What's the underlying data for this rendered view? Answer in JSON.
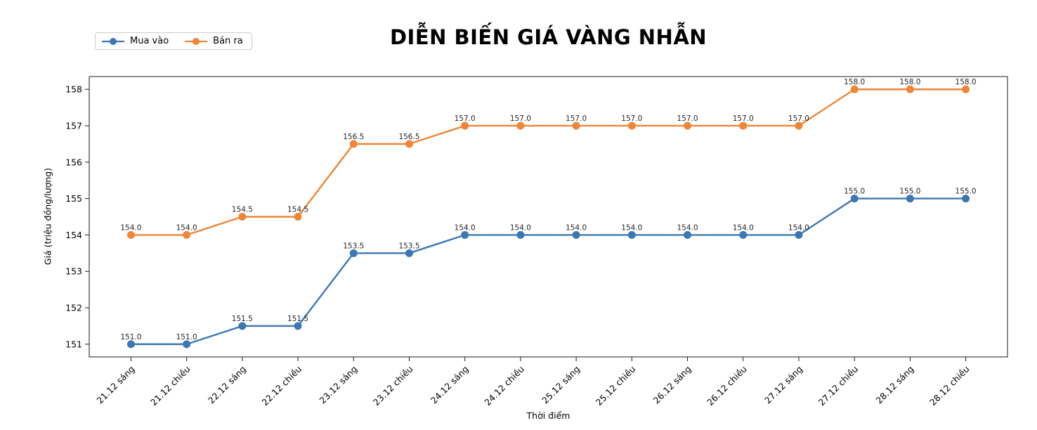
{
  "figure": {
    "background": "#ffffff"
  },
  "chart_data": {
    "type": "line",
    "title": "DIỄN BIẾN GIÁ VÀNG NHẪN",
    "xlabel": "Thời điểm",
    "ylabel": "Giá (triệu đồng/lượng)",
    "categories": [
      "21.12 sáng",
      "21.12 chiều",
      "22.12 sáng",
      "22.12 chiều",
      "23.12 sáng",
      "23.12 chiều",
      "24.12 sáng",
      "24.12 chiều",
      "25.12 sáng",
      "25.12 chiều",
      "26.12 sáng",
      "26.12 chiều",
      "27.12 sáng",
      "27.12 chiều",
      "28.12 sáng",
      "28.12 chiều"
    ],
    "series": [
      {
        "name": "Mua vào",
        "color": "#3b77b4",
        "values": [
          151.0,
          151.0,
          151.5,
          151.5,
          153.5,
          153.5,
          154.0,
          154.0,
          154.0,
          154.0,
          154.0,
          154.0,
          154.0,
          155.0,
          155.0,
          155.0
        ]
      },
      {
        "name": "Bán ra",
        "color": "#ef8536",
        "values": [
          154.0,
          154.0,
          154.5,
          154.5,
          156.5,
          156.5,
          157.0,
          157.0,
          157.0,
          157.0,
          157.0,
          157.0,
          157.0,
          158.0,
          158.0,
          158.0
        ]
      }
    ],
    "y_ticks": [
      151,
      152,
      153,
      154,
      155,
      156,
      157,
      158
    ],
    "ylim": [
      150.65,
      158.35
    ],
    "grid": false,
    "legend_position": "top-left",
    "point_labels_decimals": 1,
    "axis_color": "#1a1a1a",
    "label_color": "#262626"
  }
}
